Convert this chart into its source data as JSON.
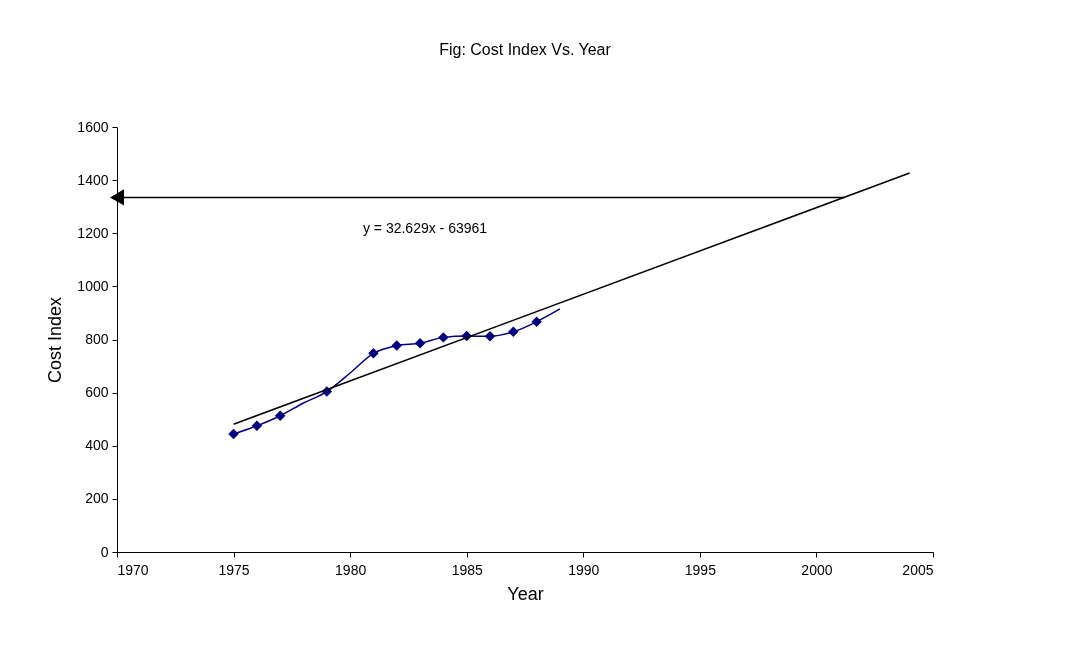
{
  "chart_data": {
    "type": "line",
    "title": "Fig: Cost Index Vs. Year",
    "xlabel": "Year",
    "ylabel": "Cost Index",
    "x": [
      1975,
      1976,
      1977,
      1978,
      1979,
      1980,
      1981,
      1982,
      1983,
      1984,
      1985,
      1986,
      1987,
      1988,
      1989
    ],
    "series": [
      {
        "color": "#000080",
        "marker": "none",
        "values": [
          444,
          475,
          513,
          561,
          604,
          674,
          748,
          777,
          786,
          808,
          813,
          812,
          829,
          867,
          915
        ]
      },
      {
        "type": "scatter",
        "color": "#000080",
        "marker": "diamond",
        "x": [
          1975,
          1976,
          1977,
          1979,
          1981,
          1982,
          1983,
          1984,
          1985,
          1986,
          1987,
          1988
        ],
        "values": [
          444,
          475,
          513,
          604,
          748,
          777,
          786,
          808,
          813,
          812,
          829,
          867
        ]
      },
      {
        "type": "line",
        "color": "#000000",
        "marker": "none",
        "x": [
          1975,
          2004
        ],
        "values": [
          481,
          1427
        ]
      },
      {
        "type": "line",
        "color": "#000000",
        "marker": "triangle",
        "x": [
          1970,
          2001.2
        ],
        "values": [
          1335,
          1335
        ]
      }
    ],
    "annotations": [
      "y = 32.629x - 63961"
    ],
    "xlim": [
      1970,
      2005
    ],
    "xticks": [
      1970,
      1975,
      1980,
      1985,
      1990,
      1995,
      2000,
      2005
    ],
    "ylim": [
      0,
      1600
    ],
    "yticks": [
      0,
      200,
      400,
      600,
      800,
      1000,
      1200,
      1400,
      1600
    ],
    "grid": false
  }
}
